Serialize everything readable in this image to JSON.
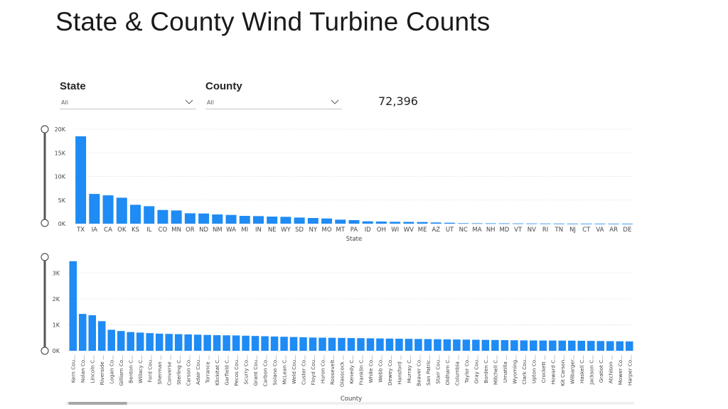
{
  "title": "State & County Wind Turbine Counts",
  "slicers": {
    "state": {
      "label": "State",
      "value": "All"
    },
    "county": {
      "label": "County",
      "value": "All"
    }
  },
  "kpi": {
    "total": "72,396"
  },
  "colors": {
    "bar": "#1f8bf4",
    "axis_text": "#444444",
    "grid": "#d6d6d6",
    "slider": "#555555"
  },
  "chart_data": [
    {
      "type": "bar",
      "title": "",
      "xlabel": "State",
      "ylabel": "",
      "ylim": [
        0,
        20000
      ],
      "yticks": [
        {
          "value": 0,
          "label": "0K"
        },
        {
          "value": 5000,
          "label": "5K"
        },
        {
          "value": 10000,
          "label": "10K"
        },
        {
          "value": 15000,
          "label": "15K"
        },
        {
          "value": 20000,
          "label": "20K"
        }
      ],
      "categories": [
        "TX",
        "IA",
        "CA",
        "OK",
        "KS",
        "IL",
        "CO",
        "MN",
        "OR",
        "ND",
        "NM",
        "WA",
        "MI",
        "IN",
        "NE",
        "WY",
        "SD",
        "NY",
        "MO",
        "MT",
        "PA",
        "ID",
        "OH",
        "WI",
        "WV",
        "ME",
        "AZ",
        "UT",
        "NC",
        "MA",
        "NH",
        "MD",
        "VT",
        "NV",
        "RI",
        "TN",
        "NJ",
        "CT",
        "VA",
        "AR",
        "DE"
      ],
      "values": [
        18500,
        6300,
        6000,
        5500,
        4000,
        3700,
        2900,
        2800,
        2200,
        2150,
        1950,
        1850,
        1650,
        1600,
        1500,
        1450,
        1300,
        1200,
        1100,
        850,
        750,
        500,
        450,
        400,
        380,
        350,
        250,
        200,
        100,
        90,
        80,
        70,
        60,
        50,
        40,
        30,
        25,
        20,
        15,
        10,
        5
      ]
    },
    {
      "type": "bar",
      "title": "",
      "xlabel": "County",
      "ylabel": "",
      "ylim": [
        0,
        3500
      ],
      "yticks": [
        {
          "value": 0,
          "label": "0K"
        },
        {
          "value": 1000,
          "label": "1K"
        },
        {
          "value": 2000,
          "label": "2K"
        },
        {
          "value": 3000,
          "label": "3K"
        }
      ],
      "categories": [
        "Kern Cou...",
        "Nolan Co...",
        "Lincoln C...",
        "Riverside ...",
        "Logan Co...",
        "Gilliam Co...",
        "Benton C...",
        "Willacy C...",
        "Ford Cou...",
        "Sherman ...",
        "Converse ...",
        "Sterling C...",
        "Carson Co...",
        "Adair Cou...",
        "Torrance ...",
        "Klickitat C...",
        "Garfield C...",
        "Pecos Cou...",
        "Scurry Co...",
        "Grant Cou...",
        "Carbon Co...",
        "Solano Co...",
        "McLean C...",
        "Weld Cou...",
        "Custer Co...",
        "Floyd Cou...",
        "Huron Co...",
        "Roosevelt...",
        "Glasscock ...",
        "Kenedy C...",
        "Franklin C...",
        "White Co...",
        "Webb Co...",
        "Dewey Co...",
        "Hansford ...",
        "Murray C...",
        "Beaver Co...",
        "San Patric...",
        "Starr Cou...",
        "Oldham C...",
        "Columbia ...",
        "Taylor Co...",
        "Gray Cou...",
        "Borden C...",
        "Mitchell C...",
        "Umatilla ...",
        "Wyoming...",
        "Clark Cou...",
        "Upton Co...",
        "Crockett ...",
        "Howard C...",
        "Kit Carson...",
        "Wilbarger...",
        "Haskell C...",
        "Jackson C...",
        "Gratiot C...",
        "Atchison ...",
        "Mower Co...",
        "Harper Co..."
      ],
      "values": [
        3450,
        1420,
        1370,
        1140,
        810,
        760,
        720,
        700,
        680,
        660,
        650,
        640,
        630,
        620,
        610,
        600,
        595,
        590,
        580,
        570,
        560,
        550,
        540,
        530,
        520,
        510,
        505,
        500,
        495,
        490,
        485,
        480,
        475,
        470,
        465,
        460,
        455,
        450,
        445,
        440,
        435,
        430,
        425,
        420,
        415,
        410,
        405,
        400,
        398,
        396,
        394,
        392,
        390,
        385,
        380,
        375,
        370,
        365,
        360
      ]
    }
  ]
}
